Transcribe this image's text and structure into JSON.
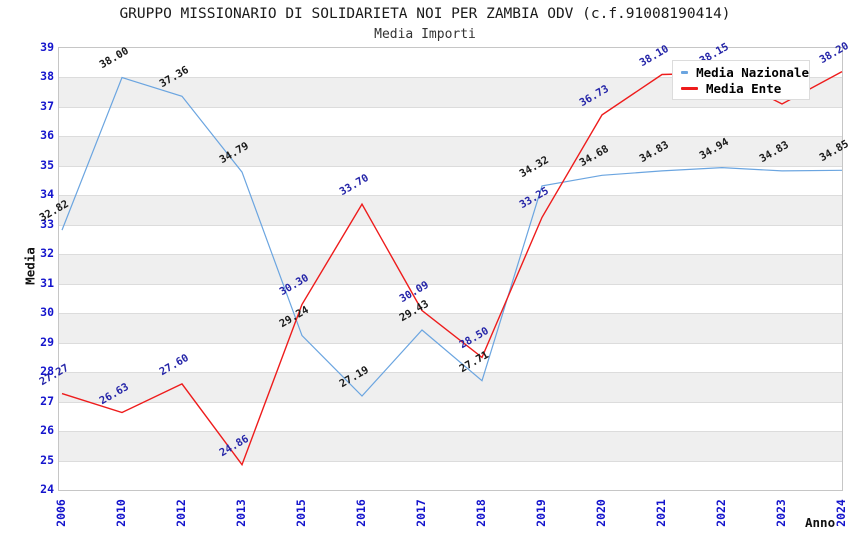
{
  "chart_data": {
    "type": "line",
    "title": "GRUPPO MISSIONARIO DI SOLIDARIETA NOI PER ZAMBIA ODV (c.f.91008190414)",
    "subtitle": "Media Importi",
    "xlabel": "Anno",
    "ylabel": "Media",
    "ylim": [
      24,
      39
    ],
    "y_tick_step": 1,
    "grid": "alternating-horizontal-bands",
    "legend_position": "top-right",
    "categories": [
      "2006",
      "2010",
      "2012",
      "2013",
      "2015",
      "2016",
      "2017",
      "2018",
      "2019",
      "2020",
      "2021",
      "2022",
      "2023",
      "2024"
    ],
    "series": [
      {
        "name": "Media Nazionale",
        "line_color": "#6BA5E0",
        "label_color": "#1a1a1a",
        "values": [
          32.82,
          38.0,
          37.36,
          34.79,
          29.24,
          27.19,
          29.43,
          27.71,
          34.32,
          34.68,
          34.83,
          34.94,
          34.83,
          34.85
        ]
      },
      {
        "name": "Media Ente",
        "line_color": "#EE1C1C",
        "label_color": "#2525A8",
        "values": [
          27.27,
          26.63,
          27.6,
          24.86,
          30.3,
          33.7,
          30.09,
          28.5,
          33.25,
          36.73,
          38.1,
          38.15,
          37.1,
          38.2
        ]
      }
    ],
    "label_format": "2-decimals",
    "colors": {
      "tick_label": "#1414CC",
      "band_gray": "#EFEFEF",
      "gridline": "#DCDCDC",
      "plot_border": "#C6C6C6",
      "title_text": "#1A1A1A",
      "axis_title_text": "#111111"
    }
  }
}
